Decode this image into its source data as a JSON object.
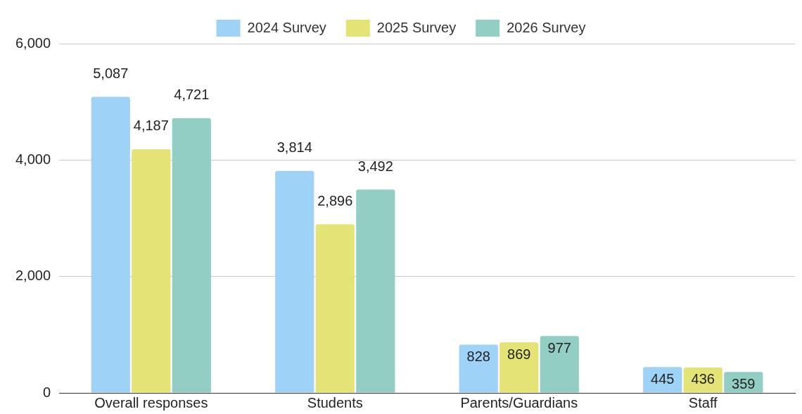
{
  "chart_data": {
    "type": "bar",
    "categories": [
      "Overall responses",
      "Students",
      "Parents/Guardians",
      "Staff"
    ],
    "series": [
      {
        "name": "2024 Survey",
        "color": "#9ed3f7",
        "values": [
          5087,
          3814,
          828,
          445
        ],
        "value_labels": [
          "5,087",
          "3,814",
          "828",
          "445"
        ]
      },
      {
        "name": "2025 Survey",
        "color": "#e4e476",
        "values": [
          4187,
          2896,
          869,
          436
        ],
        "value_labels": [
          "4,187",
          "2,896",
          "869",
          "436"
        ]
      },
      {
        "name": "2026 Survey",
        "color": "#93cec4",
        "values": [
          4721,
          3492,
          977,
          359
        ],
        "value_labels": [
          "4,721",
          "3,492",
          "977",
          "359"
        ]
      }
    ],
    "ylim": [
      0,
      6000
    ],
    "yticks": [
      {
        "value": 0,
        "label": "0"
      },
      {
        "value": 2000,
        "label": "2,000"
      },
      {
        "value": 4000,
        "label": "4,000"
      },
      {
        "value": 6000,
        "label": "6,000"
      }
    ],
    "grid": "y",
    "legend": "top"
  }
}
